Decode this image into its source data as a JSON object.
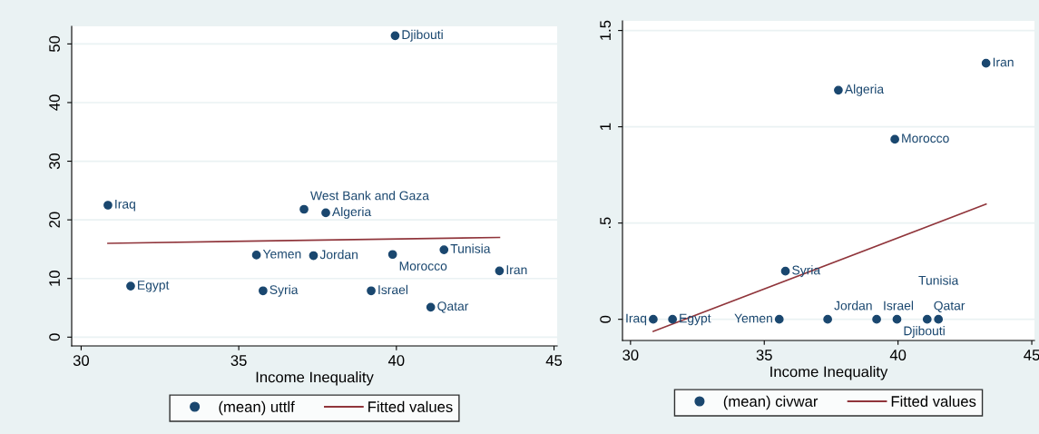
{
  "chart_data": [
    {
      "type": "scatter",
      "xlabel": "Income Inequality",
      "xlim": [
        29.7,
        45.1
      ],
      "ylim": [
        -1.5,
        53
      ],
      "xticks": [
        30,
        35,
        40,
        45
      ],
      "yticks": [
        0,
        10,
        20,
        30,
        40,
        50
      ],
      "grid": "y",
      "legend": "bottom",
      "marker": "circle",
      "series": [
        {
          "name": "(mean) uttlf",
          "color": "#1a476f",
          "x": [
            30.85,
            31.57,
            35.56,
            35.77,
            37.07,
            37.76,
            37.37,
            39.2,
            39.96,
            39.88,
            41.09,
            41.51,
            43.27
          ],
          "values": [
            22.5,
            8.7,
            14.0,
            7.9,
            21.8,
            21.2,
            13.9,
            7.9,
            51.4,
            14.1,
            5.1,
            14.9,
            11.3
          ]
        },
        {
          "name": "Fitted values",
          "type": "line",
          "color": "#90353b",
          "x": [
            30.85,
            43.27
          ],
          "values": [
            16.0,
            17.0
          ],
          "marker": "none"
        }
      ],
      "annotations": [
        {
          "text": "Iraq",
          "x": 30.85,
          "y": 22.5
        },
        {
          "text": "Egypt",
          "x": 31.57,
          "y": 8.7
        },
        {
          "text": "Yemen",
          "x": 35.56,
          "y": 14.0
        },
        {
          "text": "Syria",
          "x": 35.77,
          "y": 7.9
        },
        {
          "text": "West Bank and Gaza",
          "x": 37.07,
          "y": 21.8
        },
        {
          "text": "Algeria",
          "x": 37.76,
          "y": 21.2
        },
        {
          "text": "Jordan",
          "x": 37.37,
          "y": 13.9
        },
        {
          "text": "Israel",
          "x": 39.2,
          "y": 7.9
        },
        {
          "text": "Djibouti",
          "x": 39.96,
          "y": 51.4
        },
        {
          "text": "Morocco",
          "x": 39.88,
          "y": 14.1
        },
        {
          "text": "Qatar",
          "x": 41.09,
          "y": 5.1
        },
        {
          "text": "Tunisia",
          "x": 41.51,
          "y": 14.9
        },
        {
          "text": "Iran",
          "x": 43.27,
          "y": 11.3
        }
      ]
    },
    {
      "type": "scatter",
      "xlabel": "Income Inequality",
      "xlim": [
        29.7,
        45.1
      ],
      "ylim": [
        -0.11,
        1.55
      ],
      "xticks": [
        30,
        35,
        40,
        45
      ],
      "yticks": [
        0,
        {
          "value": 0.5,
          "label": ".5"
        },
        1,
        1.5
      ],
      "grid": "y",
      "legend": "bottom",
      "marker": "circle",
      "series": [
        {
          "name": "(mean) civwar",
          "color": "#1a476f",
          "x": [
            30.85,
            31.57,
            35.56,
            35.79,
            37.77,
            37.37,
            39.2,
            39.96,
            39.88,
            41.09,
            41.51,
            43.29
          ],
          "values": [
            0,
            0,
            0,
            0.25,
            1.19,
            0,
            0,
            0,
            0.935,
            0,
            0,
            1.33
          ]
        },
        {
          "name": "Fitted values",
          "type": "line",
          "color": "#90353b",
          "x": [
            30.85,
            43.29
          ],
          "values": [
            -0.063,
            0.598
          ],
          "marker": "none"
        }
      ],
      "annotations": [
        {
          "text": "Iraq",
          "x": 30.85,
          "y": 0
        },
        {
          "text": "Egypt",
          "x": 31.57,
          "y": 0
        },
        {
          "text": "Yemen",
          "x": 35.56,
          "y": 0
        },
        {
          "text": "Syria",
          "x": 35.79,
          "y": 0.25
        },
        {
          "text": "Algeria",
          "x": 37.77,
          "y": 1.19
        },
        {
          "text": "Jordan",
          "x": 37.37,
          "y": 0
        },
        {
          "text": "Israel",
          "x": 39.2,
          "y": 0
        },
        {
          "text": "Djibouti",
          "x": 39.96,
          "y": 0
        },
        {
          "text": "Morocco",
          "x": 39.88,
          "y": 0.935
        },
        {
          "text": "Qatar",
          "x": 41.09,
          "y": 0
        },
        {
          "text": "Tunisia",
          "x": 41.51,
          "y": 0
        },
        {
          "text": "Iran",
          "x": 43.29,
          "y": 1.33
        }
      ]
    }
  ]
}
